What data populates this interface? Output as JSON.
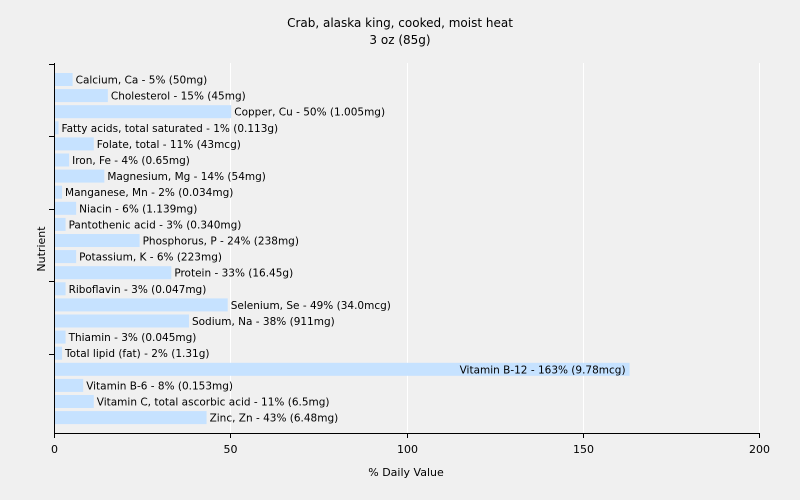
{
  "chart_data": {
    "type": "bar",
    "orientation": "horizontal",
    "title": "Crab, alaska king, cooked, moist heat",
    "subtitle": "3 oz (85g)",
    "xlabel": "% Daily Value",
    "ylabel": "Nutrient",
    "xlim": [
      0,
      200
    ],
    "xticks": [
      "0",
      "50",
      "100",
      "150",
      "200"
    ],
    "grid": "vertical",
    "bar_color": "#c6e2ff",
    "categories": [
      "Calcium, Ca",
      "Cholesterol",
      "Copper, Cu",
      "Fatty acids, total saturated",
      "Folate, total",
      "Iron, Fe",
      "Magnesium, Mg",
      "Manganese, Mn",
      "Niacin",
      "Pantothenic acid",
      "Phosphorus, P",
      "Potassium, K",
      "Protein",
      "Riboflavin",
      "Selenium, Se",
      "Sodium, Na",
      "Thiamin",
      "Total lipid (fat)",
      "Vitamin B-12",
      "Vitamin B-6",
      "Vitamin C, total ascorbic acid",
      "Zinc, Zn"
    ],
    "values": [
      5,
      15,
      50,
      1,
      11,
      4,
      14,
      2,
      6,
      3,
      24,
      6,
      33,
      3,
      49,
      38,
      3,
      2,
      163,
      8,
      11,
      43
    ],
    "labels": [
      "Calcium, Ca - 5% (50mg)",
      "Cholesterol - 15% (45mg)",
      "Copper, Cu - 50% (1.005mg)",
      "Fatty acids, total saturated - 1% (0.113g)",
      "Folate, total - 11% (43mcg)",
      "Iron, Fe - 4% (0.65mg)",
      "Magnesium, Mg - 14% (54mg)",
      "Manganese, Mn - 2% (0.034mg)",
      "Niacin - 6% (1.139mg)",
      "Pantothenic acid - 3% (0.340mg)",
      "Phosphorus, P - 24% (238mg)",
      "Potassium, K - 6% (223mg)",
      "Protein - 33% (16.45g)",
      "Riboflavin - 3% (0.047mg)",
      "Selenium, Se - 49% (34.0mcg)",
      "Sodium, Na - 38% (911mg)",
      "Thiamin - 3% (0.045mg)",
      "Total lipid (fat) - 2% (1.31g)",
      "Vitamin B-12 - 163% (9.78mcg)",
      "Vitamin B-6 - 8% (0.153mg)",
      "Vitamin C, total ascorbic acid - 11% (6.5mg)",
      "Zinc, Zn - 43% (6.48mg)"
    ]
  }
}
